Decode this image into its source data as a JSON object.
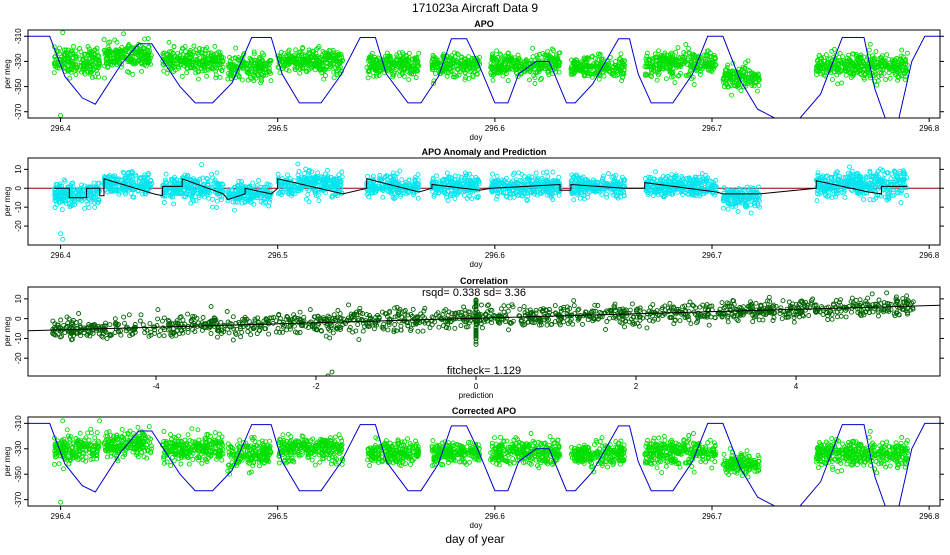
{
  "page_title": "171023a   Aircraft Data 9",
  "bottom_label": "day of year",
  "colors": {
    "obs_green": "#00e000",
    "anomaly_cyan": "#00e5ee",
    "corr_darkgreen": "#006400",
    "model_blue": "#0000cd",
    "zero_line_red": "#8b0000",
    "fit_black": "#000000"
  },
  "chart_data": [
    {
      "type": "scatter",
      "title": "APO",
      "xlabel": "doy",
      "ylabel": "per meg",
      "xlim": [
        296.385,
        296.805
      ],
      "ylim": [
        -375,
        -305
      ],
      "y_reversed": true,
      "xticks": [
        296.4,
        296.5,
        296.6,
        296.7,
        296.8
      ],
      "xtick_labels": [
        "296.4",
        "296.5",
        "296.6",
        "296.7",
        "296.8"
      ],
      "yticks": [
        -310,
        -330,
        -350,
        -370
      ],
      "ytick_labels": [
        "-310",
        "-330",
        "-350",
        "-370"
      ],
      "segments": [
        {
          "x": [
            296.397,
            296.418
          ],
          "center": -330,
          "spread": 10
        },
        {
          "x": [
            296.42,
            296.442
          ],
          "center": -326,
          "spread": 9
        },
        {
          "x": [
            296.447,
            296.475
          ],
          "center": -330,
          "spread": 9
        },
        {
          "x": [
            296.477,
            296.497
          ],
          "center": -335,
          "spread": 9
        },
        {
          "x": [
            296.5,
            296.53
          ],
          "center": -330,
          "spread": 9
        },
        {
          "x": [
            296.541,
            296.565
          ],
          "center": -333,
          "spread": 8
        },
        {
          "x": [
            296.571,
            296.593
          ],
          "center": -333,
          "spread": 8
        },
        {
          "x": [
            296.598,
            296.63
          ],
          "center": -333,
          "spread": 9
        },
        {
          "x": [
            296.635,
            296.66
          ],
          "center": -335,
          "spread": 8
        },
        {
          "x": [
            296.669,
            296.702
          ],
          "center": -332,
          "spread": 9
        },
        {
          "x": [
            296.705,
            296.722
          ],
          "center": -342,
          "spread": 8
        },
        {
          "x": [
            296.748,
            296.79
          ],
          "center": -334,
          "spread": 9
        }
      ],
      "outliers": [
        {
          "x": 296.4,
          "y": -373
        },
        {
          "x": 296.429,
          "y": -308
        },
        {
          "x": 296.401,
          "y": -307
        }
      ],
      "model_line": {
        "x": [
          296.385,
          296.395,
          296.402,
          296.41,
          296.416,
          296.428,
          296.436,
          296.442,
          296.455,
          296.462,
          296.47,
          296.479,
          296.488,
          296.497,
          296.502,
          296.51,
          296.52,
          296.529,
          296.538,
          296.545,
          296.55,
          296.56,
          296.566,
          296.574,
          296.58,
          296.587,
          296.592,
          296.6,
          296.606,
          296.611,
          296.619,
          296.625,
          296.633,
          296.637,
          296.645,
          296.651,
          296.657,
          296.662,
          296.666,
          296.672,
          296.682,
          296.691,
          296.698,
          296.705,
          296.713,
          296.721,
          296.73,
          296.74,
          296.75,
          296.76,
          296.77,
          296.775,
          296.78,
          296.786,
          296.792,
          296.798,
          296.805
        ],
        "y": [
          -310,
          -310,
          -342,
          -359,
          -364,
          -332,
          -316,
          -316,
          -350,
          -363,
          -363,
          -347,
          -311,
          -311,
          -340,
          -363,
          -363,
          -341,
          -311,
          -311,
          -340,
          -363,
          -363,
          -342,
          -312,
          -312,
          -330,
          -363,
          -363,
          -340,
          -330,
          -330,
          -363,
          -363,
          -348,
          -330,
          -312,
          -312,
          -340,
          -363,
          -363,
          -340,
          -310,
          -310,
          -345,
          -368,
          -376,
          -376,
          -356,
          -311,
          -311,
          -352,
          -376,
          -376,
          -330,
          -310,
          -310
        ]
      }
    },
    {
      "type": "scatter",
      "title": "APO Anomaly and Prediction",
      "xlabel": "doy",
      "ylabel": "per meg",
      "xlim": [
        296.385,
        296.805
      ],
      "ylim": [
        -30,
        16
      ],
      "y_reversed": false,
      "xticks": [
        296.4,
        296.5,
        296.6,
        296.7,
        296.8
      ],
      "xtick_labels": [
        "296.4",
        "296.5",
        "296.6",
        "296.7",
        "296.8"
      ],
      "yticks": [
        10,
        0,
        -10,
        -20
      ],
      "ytick_labels": [
        "10",
        "0",
        "-10",
        "-20"
      ],
      "zero_line": 0,
      "segments": [
        {
          "x": [
            296.397,
            296.418
          ],
          "center": -3,
          "spread": 6
        },
        {
          "x": [
            296.42,
            296.442
          ],
          "center": 2,
          "spread": 5
        },
        {
          "x": [
            296.447,
            296.475
          ],
          "center": 0,
          "spread": 6
        },
        {
          "x": [
            296.477,
            296.497
          ],
          "center": -3,
          "spread": 5
        },
        {
          "x": [
            296.5,
            296.53
          ],
          "center": 2,
          "spread": 6
        },
        {
          "x": [
            296.541,
            296.565
          ],
          "center": 1,
          "spread": 5
        },
        {
          "x": [
            296.571,
            296.593
          ],
          "center": 1,
          "spread": 5
        },
        {
          "x": [
            296.598,
            296.63
          ],
          "center": 1,
          "spread": 5
        },
        {
          "x": [
            296.635,
            296.66
          ],
          "center": 1,
          "spread": 5
        },
        {
          "x": [
            296.669,
            296.702
          ],
          "center": 1,
          "spread": 5
        },
        {
          "x": [
            296.705,
            296.722
          ],
          "center": -5,
          "spread": 5
        },
        {
          "x": [
            296.748,
            296.79
          ],
          "center": 2,
          "spread": 6
        }
      ],
      "outliers": [
        {
          "x": 296.4,
          "y": -24
        },
        {
          "x": 296.401,
          "y": -27
        }
      ],
      "prediction_line": {
        "x": [
          296.397,
          296.404,
          296.404,
          296.412,
          296.412,
          296.418,
          296.418,
          296.42,
          296.42,
          296.443,
          296.443,
          296.447,
          296.447,
          296.456,
          296.456,
          296.475,
          296.475,
          296.477,
          296.477,
          296.485,
          296.485,
          296.497,
          296.497,
          296.5,
          296.5,
          296.53,
          296.53,
          296.541,
          296.541,
          296.565,
          296.565,
          296.571,
          296.571,
          296.593,
          296.593,
          296.598,
          296.598,
          296.63,
          296.63,
          296.635,
          296.635,
          296.66,
          296.66,
          296.669,
          296.669,
          296.702,
          296.702,
          296.705,
          296.705,
          296.722,
          296.722,
          296.748,
          296.748,
          296.772,
          296.772,
          296.778,
          296.778,
          296.79
        ],
        "y": [
          0,
          0,
          -5,
          -5,
          0,
          0,
          -4,
          -4,
          5,
          -3,
          -3,
          -4,
          1,
          1,
          5,
          -3,
          -3,
          -6,
          -6,
          -3,
          0,
          -3,
          -3,
          0,
          5,
          -3,
          -3,
          0,
          5,
          -2,
          -2,
          0,
          2,
          -1,
          -1,
          0,
          0,
          2,
          -1,
          -1,
          2,
          0,
          0,
          0,
          3,
          -2,
          -2,
          -3,
          -3,
          -3,
          -3,
          0,
          4,
          -2,
          -2,
          -3,
          1,
          1
        ]
      }
    },
    {
      "type": "scatter",
      "title": "Correlation",
      "xlabel": "prediction",
      "ylabel": "per meg",
      "xlim": [
        -5.6,
        5.8
      ],
      "ylim": [
        -29,
        16
      ],
      "y_reversed": false,
      "xticks": [
        -4,
        -2,
        0,
        2,
        4
      ],
      "xtick_labels": [
        "-4",
        "-2",
        "0",
        "2",
        "4"
      ],
      "yticks": [
        10,
        0,
        -10,
        -20
      ],
      "ytick_labels": [
        "10",
        "0",
        "-10",
        "-20"
      ],
      "rsqd_text": "rsqd= 0.338 sd= 3.36",
      "fitcheck_text": "fitcheck= 1.129",
      "fit": {
        "slope": 1.129,
        "intercept": 0.2
      },
      "point_cloud": {
        "x_range": [
          -5.3,
          5.5
        ],
        "sd": 3.36
      },
      "outliers": [
        {
          "x": -1.8,
          "y": -27
        },
        {
          "x": -1.85,
          "y": -29
        },
        {
          "x": 0.0,
          "y": -13
        }
      ]
    },
    {
      "type": "scatter",
      "title": "Corrected APO",
      "xlabel": "doy",
      "ylabel": "per meg",
      "xlim": [
        296.385,
        296.805
      ],
      "ylim": [
        -375,
        -305
      ],
      "y_reversed": true,
      "xticks": [
        296.4,
        296.5,
        296.6,
        296.7,
        296.8
      ],
      "xtick_labels": [
        "296.4",
        "296.5",
        "296.6",
        "296.7",
        "296.8"
      ],
      "yticks": [
        -310,
        -330,
        -350,
        -370
      ],
      "ytick_labels": [
        "-310",
        "-330",
        "-350",
        "-370"
      ],
      "uses_segments_of_panel": 0,
      "outliers": [
        {
          "x": 296.4,
          "y": -372
        },
        {
          "x": 296.418,
          "y": -308
        },
        {
          "x": 296.401,
          "y": -308
        }
      ],
      "model_line_of_panel": 0
    }
  ]
}
